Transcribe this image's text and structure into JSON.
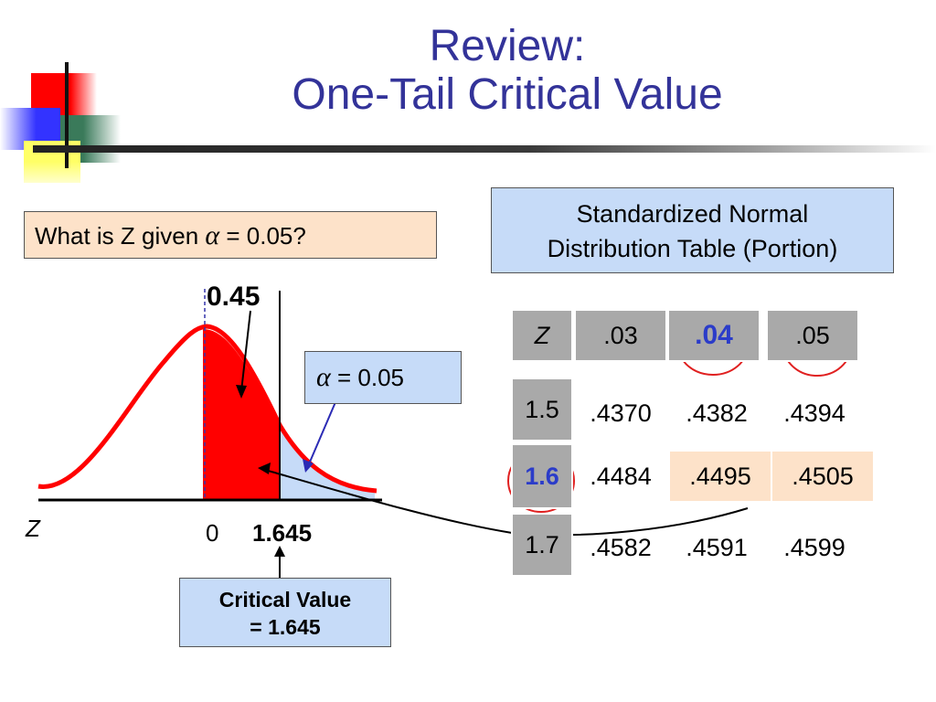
{
  "slide": {
    "title_line1": "Review:",
    "title_line2": "One-Tail Critical Value",
    "question_prefix": "What is Z given ",
    "question_alpha": "α",
    "question_suffix": " = 0.05?",
    "table_title_line1": "Standardized Normal",
    "table_title_line2": "Distribution Table (Portion)"
  },
  "diagram": {
    "area_label": "0.45",
    "alpha_symbol": "α",
    "alpha_text": " = 0.05",
    "z_axis_label": "Z",
    "tick_zero": "0",
    "tick_critical": "1.645",
    "critical_line1": "Critical Value",
    "critical_line2": "= 1.645"
  },
  "table": {
    "corner": "Z",
    "columns": [
      ".03",
      ".04",
      ".05"
    ],
    "rows": [
      {
        "z": "1.5",
        "values": [
          ".4370",
          ".4382",
          ".4394"
        ]
      },
      {
        "z": "1.6",
        "values": [
          ".4484",
          ".4495",
          ".4505"
        ]
      },
      {
        "z": "1.7",
        "values": [
          ".4582",
          ".4591",
          ".4599"
        ]
      }
    ]
  },
  "colors": {
    "title": "#333399",
    "curve": "#ff0000",
    "tail_fill": "#c6dbf8",
    "highlight": "#fde2c9",
    "table_header": "#a9a9a9",
    "emphasis_blue": "#2b3cc9"
  }
}
